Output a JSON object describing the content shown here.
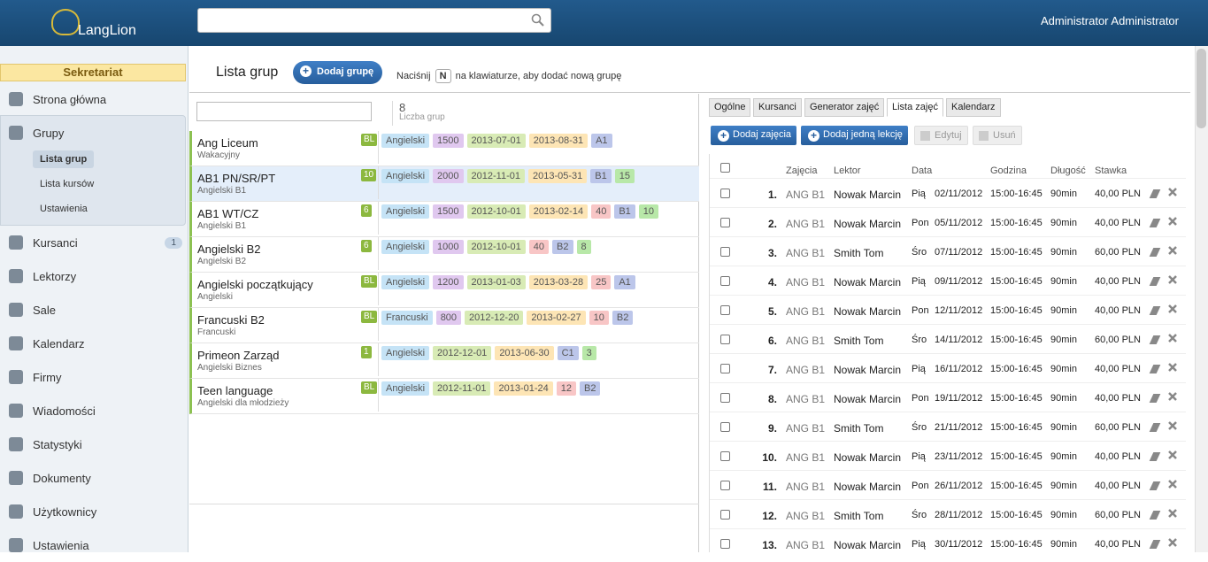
{
  "header": {
    "logo": "LangLion",
    "user": "Administrator Administrator"
  },
  "sidebar": {
    "section": "Sekretariat",
    "items": [
      {
        "label": "Strona główna"
      },
      {
        "label": "Grupy",
        "children": [
          "Lista grup",
          "Lista kursów",
          "Ustawienia"
        ]
      },
      {
        "label": "Kursanci",
        "badge": "1"
      },
      {
        "label": "Lektorzy"
      },
      {
        "label": "Sale"
      },
      {
        "label": "Kalendarz"
      },
      {
        "label": "Firmy"
      },
      {
        "label": "Wiadomości"
      },
      {
        "label": "Statystyki"
      },
      {
        "label": "Dokumenty"
      },
      {
        "label": "Użytkownicy"
      },
      {
        "label": "Ustawienia"
      }
    ]
  },
  "toolbar": {
    "title": "Lista grup",
    "add_button": "Dodaj grupę",
    "hint_before": "Naciśnij",
    "hint_key": "N",
    "hint_after": "na klawiaturze, aby dodać nową grupę"
  },
  "groups": {
    "count": "8",
    "count_label": "Liczba grup",
    "rows": [
      {
        "name": "Ang Liceum",
        "subtitle": "Wakacyjny",
        "badge": "BL",
        "tags": [
          {
            "text": "Angielski",
            "color": "#c5e3f6"
          },
          {
            "text": "1500",
            "color": "#e0c8ef"
          },
          {
            "text": "2013-07-01",
            "color": "#d8ebb5"
          },
          {
            "text": "2013-08-31",
            "color": "#fde5b5"
          },
          {
            "text": "A1",
            "color": "#bcc6ea"
          }
        ]
      },
      {
        "name": "AB1 PN/SR/PT",
        "subtitle": "Angielski B1",
        "badge": "10",
        "tags": [
          {
            "text": "Angielski",
            "color": "#c5e3f6"
          },
          {
            "text": "2000",
            "color": "#e0c8ef"
          },
          {
            "text": "2012-11-01",
            "color": "#d8ebb5"
          },
          {
            "text": "2013-05-31",
            "color": "#fde5b5"
          },
          {
            "text": "B1",
            "color": "#bcc6ea"
          },
          {
            "text": "15",
            "color": "#b8e8a8"
          }
        ]
      },
      {
        "name": "AB1 WT/CZ",
        "subtitle": "Angielski B1",
        "badge": "6",
        "tags": [
          {
            "text": "Angielski",
            "color": "#c5e3f6"
          },
          {
            "text": "1500",
            "color": "#e0c8ef"
          },
          {
            "text": "2012-10-01",
            "color": "#d8ebb5"
          },
          {
            "text": "2013-02-14",
            "color": "#fde5b5"
          },
          {
            "text": "40",
            "color": "#f8c6c6"
          },
          {
            "text": "B1",
            "color": "#bcc6ea"
          },
          {
            "text": "10",
            "color": "#b8e8a8"
          }
        ]
      },
      {
        "name": "Angielski B2",
        "subtitle": "Angielski B2",
        "badge": "6",
        "tags": [
          {
            "text": "Angielski",
            "color": "#c5e3f6"
          },
          {
            "text": "1000",
            "color": "#e0c8ef"
          },
          {
            "text": "2012-10-01",
            "color": "#d8ebb5"
          },
          {
            "text": "40",
            "color": "#f8c6c6"
          },
          {
            "text": "B2",
            "color": "#bcc6ea"
          },
          {
            "text": "8",
            "color": "#b8e8a8"
          }
        ]
      },
      {
        "name": "Angielski początkujący",
        "subtitle": "Angielski",
        "badge": "BL",
        "tags": [
          {
            "text": "Angielski",
            "color": "#c5e3f6"
          },
          {
            "text": "1200",
            "color": "#e0c8ef"
          },
          {
            "text": "2013-01-03",
            "color": "#d8ebb5"
          },
          {
            "text": "2013-03-28",
            "color": "#fde5b5"
          },
          {
            "text": "25",
            "color": "#f8c6c6"
          },
          {
            "text": "A1",
            "color": "#bcc6ea"
          }
        ]
      },
      {
        "name": "Francuski B2",
        "subtitle": "Francuski",
        "badge": "BL",
        "tags": [
          {
            "text": "Francuski",
            "color": "#c5e3f6"
          },
          {
            "text": "800",
            "color": "#e0c8ef"
          },
          {
            "text": "2012-12-20",
            "color": "#d8ebb5"
          },
          {
            "text": "2013-02-27",
            "color": "#fde5b5"
          },
          {
            "text": "10",
            "color": "#f8c6c6"
          },
          {
            "text": "B2",
            "color": "#bcc6ea"
          }
        ]
      },
      {
        "name": "Primeon Zarząd",
        "subtitle": "Angielski Biznes",
        "badge": "1",
        "tags": [
          {
            "text": "Angielski",
            "color": "#c5e3f6"
          },
          {
            "text": "2012-12-01",
            "color": "#d8ebb5"
          },
          {
            "text": "2013-06-30",
            "color": "#fde5b5"
          },
          {
            "text": "C1",
            "color": "#bcc6ea"
          },
          {
            "text": "3",
            "color": "#b8e8a8"
          }
        ]
      },
      {
        "name": "Teen language",
        "subtitle": "Angielski dla młodzieży",
        "badge": "BL",
        "tags": [
          {
            "text": "Angielski",
            "color": "#c5e3f6"
          },
          {
            "text": "2012-11-01",
            "color": "#d8ebb5"
          },
          {
            "text": "2013-01-24",
            "color": "#fde5b5"
          },
          {
            "text": "12",
            "color": "#f8c6c6"
          },
          {
            "text": "B2",
            "color": "#bcc6ea"
          }
        ]
      }
    ]
  },
  "details": {
    "tabs": [
      "Ogólne",
      "Kursanci",
      "Generator zajęć",
      "Lista zajęć",
      "Kalendarz"
    ],
    "buttons": [
      "Dodaj zajęcia",
      "Dodaj jedną lekcję",
      "Edytuj",
      "Usuń"
    ],
    "columns": [
      "Zajęcia",
      "Lektor",
      "Data",
      "Godzina",
      "Długość",
      "Stawka"
    ],
    "rows": [
      [
        "1.",
        "ANG B1",
        "Nowak Marcin",
        "Pią",
        "02/11/2012",
        "15:00-16:45",
        "90min",
        "40,00 PLN"
      ],
      [
        "2.",
        "ANG B1",
        "Nowak Marcin",
        "Pon",
        "05/11/2012",
        "15:00-16:45",
        "90min",
        "40,00 PLN"
      ],
      [
        "3.",
        "ANG B1",
        "Smith Tom",
        "Śro",
        "07/11/2012",
        "15:00-16:45",
        "90min",
        "60,00 PLN"
      ],
      [
        "4.",
        "ANG B1",
        "Nowak Marcin",
        "Pią",
        "09/11/2012",
        "15:00-16:45",
        "90min",
        "40,00 PLN"
      ],
      [
        "5.",
        "ANG B1",
        "Nowak Marcin",
        "Pon",
        "12/11/2012",
        "15:00-16:45",
        "90min",
        "40,00 PLN"
      ],
      [
        "6.",
        "ANG B1",
        "Smith Tom",
        "Śro",
        "14/11/2012",
        "15:00-16:45",
        "90min",
        "60,00 PLN"
      ],
      [
        "7.",
        "ANG B1",
        "Nowak Marcin",
        "Pią",
        "16/11/2012",
        "15:00-16:45",
        "90min",
        "40,00 PLN"
      ],
      [
        "8.",
        "ANG B1",
        "Nowak Marcin",
        "Pon",
        "19/11/2012",
        "15:00-16:45",
        "90min",
        "40,00 PLN"
      ],
      [
        "9.",
        "ANG B1",
        "Smith Tom",
        "Śro",
        "21/11/2012",
        "15:00-16:45",
        "90min",
        "60,00 PLN"
      ],
      [
        "10.",
        "ANG B1",
        "Nowak Marcin",
        "Pią",
        "23/11/2012",
        "15:00-16:45",
        "90min",
        "40,00 PLN"
      ],
      [
        "11.",
        "ANG B1",
        "Nowak Marcin",
        "Pon",
        "26/11/2012",
        "15:00-16:45",
        "90min",
        "40,00 PLN"
      ],
      [
        "12.",
        "ANG B1",
        "Smith Tom",
        "Śro",
        "28/11/2012",
        "15:00-16:45",
        "90min",
        "60,00 PLN"
      ],
      [
        "13.",
        "ANG B1",
        "Nowak Marcin",
        "Pią",
        "30/11/2012",
        "15:00-16:45",
        "90min",
        "40,00 PLN"
      ]
    ]
  }
}
